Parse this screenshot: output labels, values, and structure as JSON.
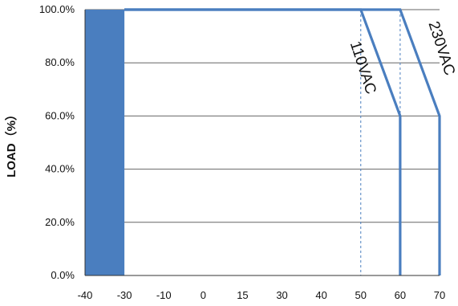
{
  "chart_data": {
    "type": "line",
    "ylabel": "LOAD（%）",
    "xlabel": "",
    "x_tick_labels": [
      "-40",
      "-30",
      "-10",
      "0",
      "15",
      "30",
      "40",
      "50",
      "60",
      "70"
    ],
    "y_tick_labels": [
      "0.0%",
      "20.0%",
      "40.0%",
      "60.0%",
      "80.0%",
      "100.0%"
    ],
    "ylim": [
      0,
      100
    ],
    "grid": "horizontal",
    "series": [
      {
        "name": "110VAC",
        "x": [
          "-30",
          "50",
          "60",
          "60"
        ],
        "y": [
          100,
          100,
          60,
          0
        ]
      },
      {
        "name": "230VAC",
        "x": [
          "-30",
          "60",
          "70",
          "70"
        ],
        "y": [
          100,
          100,
          60,
          0
        ]
      }
    ],
    "reference_lines_x": [
      "50",
      "60"
    ],
    "shaded_region_x": [
      "-40",
      "-30"
    ],
    "colors": {
      "series": "#4a7ebf",
      "shade": "#4a7ebf",
      "reference": "#4a7ebf",
      "grid": "#666666"
    }
  }
}
